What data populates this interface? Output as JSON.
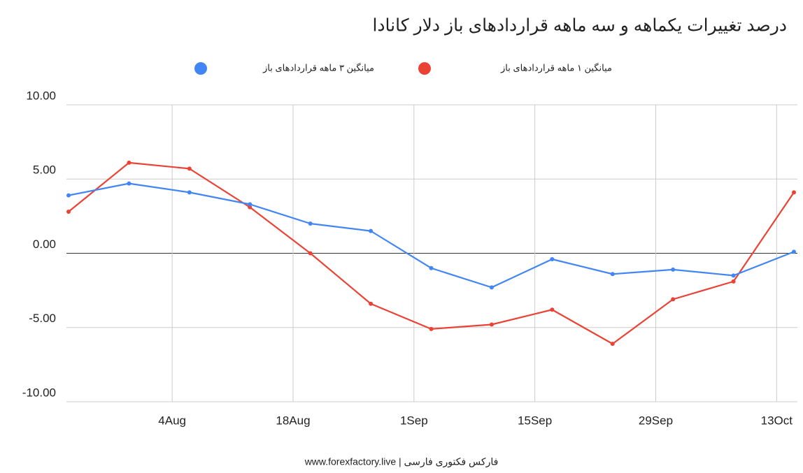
{
  "chart_data": {
    "type": "line",
    "title": "درصد تغییرات یکماهه و سه ماهه قراردادهای باز دلار کانادا",
    "footer": "فارکس فکتوری فارسی | www.forexfactory.live",
    "x": [
      "23Jul",
      "30Jul",
      "6Aug",
      "13Aug",
      "20Aug",
      "27Aug",
      "3Sep",
      "10Sep",
      "17Sep",
      "24Sep",
      "1Oct",
      "8Oct",
      "15Oct"
    ],
    "series": [
      {
        "name": "میانگین ۱ ماهه قراردادهای باز",
        "color": "#ea4335",
        "values": [
          2.8,
          6.1,
          5.7,
          3.1,
          0.0,
          -3.4,
          -5.1,
          -4.8,
          -3.8,
          -6.1,
          -3.1,
          -1.9,
          4.1
        ]
      },
      {
        "name": "میانگین ۳ ماهه قراردادهای باز",
        "color": "#4285f4",
        "values": [
          3.9,
          4.7,
          4.1,
          3.3,
          2.0,
          1.5,
          -1.0,
          -2.3,
          -0.4,
          -1.4,
          -1.1,
          -1.5,
          0.1
        ]
      }
    ],
    "xlim": [
      "23Jul",
      "15Oct"
    ],
    "xticks": [
      "4Aug",
      "18Aug",
      "1Sep",
      "15Sep",
      "29Sep",
      "13Oct"
    ],
    "ylim": [
      -10,
      10
    ],
    "yticks": [
      {
        "value": 10,
        "label": "10.00"
      },
      {
        "value": 5,
        "label": "5.00"
      },
      {
        "value": 0,
        "label": "0.00"
      },
      {
        "value": -5,
        "label": "-5.00"
      },
      {
        "value": -10,
        "label": "-10.00"
      }
    ],
    "grid": true,
    "legend": "top"
  }
}
